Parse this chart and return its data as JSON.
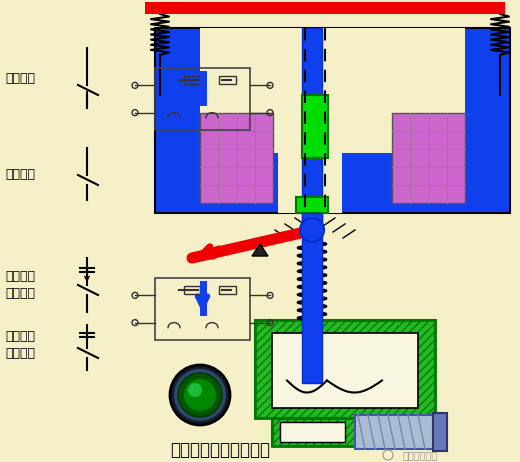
{
  "title": "断电延时型时间继电器",
  "watermark": "精品课程专用",
  "bg_color": "#f5f0c8",
  "labels": {
    "instant_nc": "瞬动常闭",
    "instant_no": "瞬动常开",
    "delay_no": "延时断开\n常开触头",
    "delay_nc": "延时闭合\n常闭触头"
  },
  "colors": {
    "red": "#ee0000",
    "blue": "#1040ee",
    "blue_dark": "#0030cc",
    "green_bright": "#00dd00",
    "green_dark": "#007700",
    "green_mid": "#22bb22",
    "purple": "#cc66cc",
    "black": "#000000",
    "gray": "#555555",
    "light_blue": "#aabbdd",
    "mid_blue": "#4466cc",
    "bg": "#f5f0c8",
    "inner_bg": "#fffff0"
  }
}
